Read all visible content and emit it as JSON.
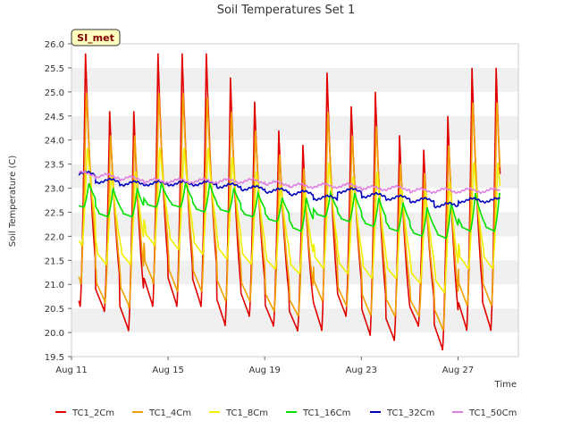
{
  "chart_data": {
    "type": "line",
    "title": "Soil Temperatures Set 1",
    "xlabel": "Time",
    "ylabel": "Soil Temperature (C)",
    "badge": "SI_met",
    "x_range_days": [
      "Aug 11",
      "Aug 29"
    ],
    "x_tick_labels": [
      "Aug 11",
      "Aug 15",
      "Aug 19",
      "Aug 23",
      "Aug 27"
    ],
    "ylim": [
      19.5,
      26.0
    ],
    "y_ticks": [
      "19.5",
      "20.0",
      "20.5",
      "21.0",
      "21.5",
      "22.0",
      "22.5",
      "23.0",
      "23.5",
      "24.0",
      "24.5",
      "25.0",
      "25.5",
      "26.0"
    ],
    "grid": "horizontal alternating bands",
    "legend_position": "bottom",
    "series": [
      {
        "name": "TC1_2Cm",
        "color": "#e00000",
        "daily_max": [
          25.8,
          24.6,
          24.6,
          25.8,
          25.8,
          25.8,
          25.3,
          24.8,
          24.2,
          23.9,
          25.4,
          24.7,
          25.0,
          24.1,
          23.8,
          24.5,
          25.5
        ],
        "daily_min": [
          20.5,
          20.4,
          20.0,
          20.5,
          20.5,
          20.5,
          20.1,
          20.3,
          20.1,
          20.0,
          20.0,
          20.3,
          19.9,
          19.8,
          20.1,
          19.6,
          20.0
        ]
      },
      {
        "name": "TC1_4Cm",
        "color": "#f0a000",
        "daily_max": [
          25.1,
          24.2,
          24.2,
          25.1,
          25.1,
          25.0,
          24.7,
          24.3,
          23.8,
          23.5,
          24.7,
          24.2,
          24.4,
          23.6,
          23.4,
          24.0,
          24.9
        ],
        "daily_min": [
          21.0,
          20.6,
          20.5,
          21.0,
          20.8,
          20.8,
          20.6,
          20.6,
          20.4,
          20.3,
          20.6,
          20.5,
          20.3,
          20.3,
          20.3,
          20.0,
          20.5
        ]
      },
      {
        "name": "TC1_8Cm",
        "color": "#f0f000",
        "daily_max": [
          23.9,
          23.4,
          23.4,
          23.9,
          23.9,
          23.9,
          23.7,
          23.4,
          23.1,
          23.0,
          23.6,
          23.3,
          23.4,
          23.1,
          23.0,
          23.2,
          23.6
        ],
        "daily_min": [
          21.8,
          21.4,
          21.4,
          21.8,
          21.7,
          21.6,
          21.5,
          21.4,
          21.3,
          21.2,
          21.3,
          21.2,
          21.1,
          21.1,
          21.0,
          20.8,
          21.3
        ]
      },
      {
        "name": "TC1_16Cm",
        "color": "#00e000",
        "daily_max": [
          23.1,
          23.0,
          23.0,
          23.1,
          23.1,
          23.1,
          23.0,
          22.9,
          22.8,
          22.8,
          22.9,
          22.9,
          22.8,
          22.7,
          22.6,
          22.7,
          22.9
        ],
        "daily_min": [
          22.6,
          22.4,
          22.4,
          22.6,
          22.6,
          22.5,
          22.5,
          22.4,
          22.3,
          22.1,
          22.4,
          22.3,
          22.2,
          22.1,
          22.0,
          21.95,
          22.1
        ]
      },
      {
        "name": "TC1_32Cm",
        "color": "#0000c0",
        "daily_mean": [
          23.3,
          23.15,
          23.1,
          23.1,
          23.1,
          23.1,
          23.05,
          23.0,
          22.95,
          22.9,
          22.8,
          22.95,
          22.85,
          22.8,
          22.75,
          22.65,
          22.75
        ]
      },
      {
        "name": "TC1_50Cm",
        "color": "#e080e0",
        "daily_mean": [
          23.3,
          23.25,
          23.2,
          23.15,
          23.15,
          23.15,
          23.15,
          23.15,
          23.1,
          23.05,
          23.05,
          23.05,
          23.0,
          23.0,
          22.95,
          22.95,
          22.95
        ]
      }
    ]
  }
}
